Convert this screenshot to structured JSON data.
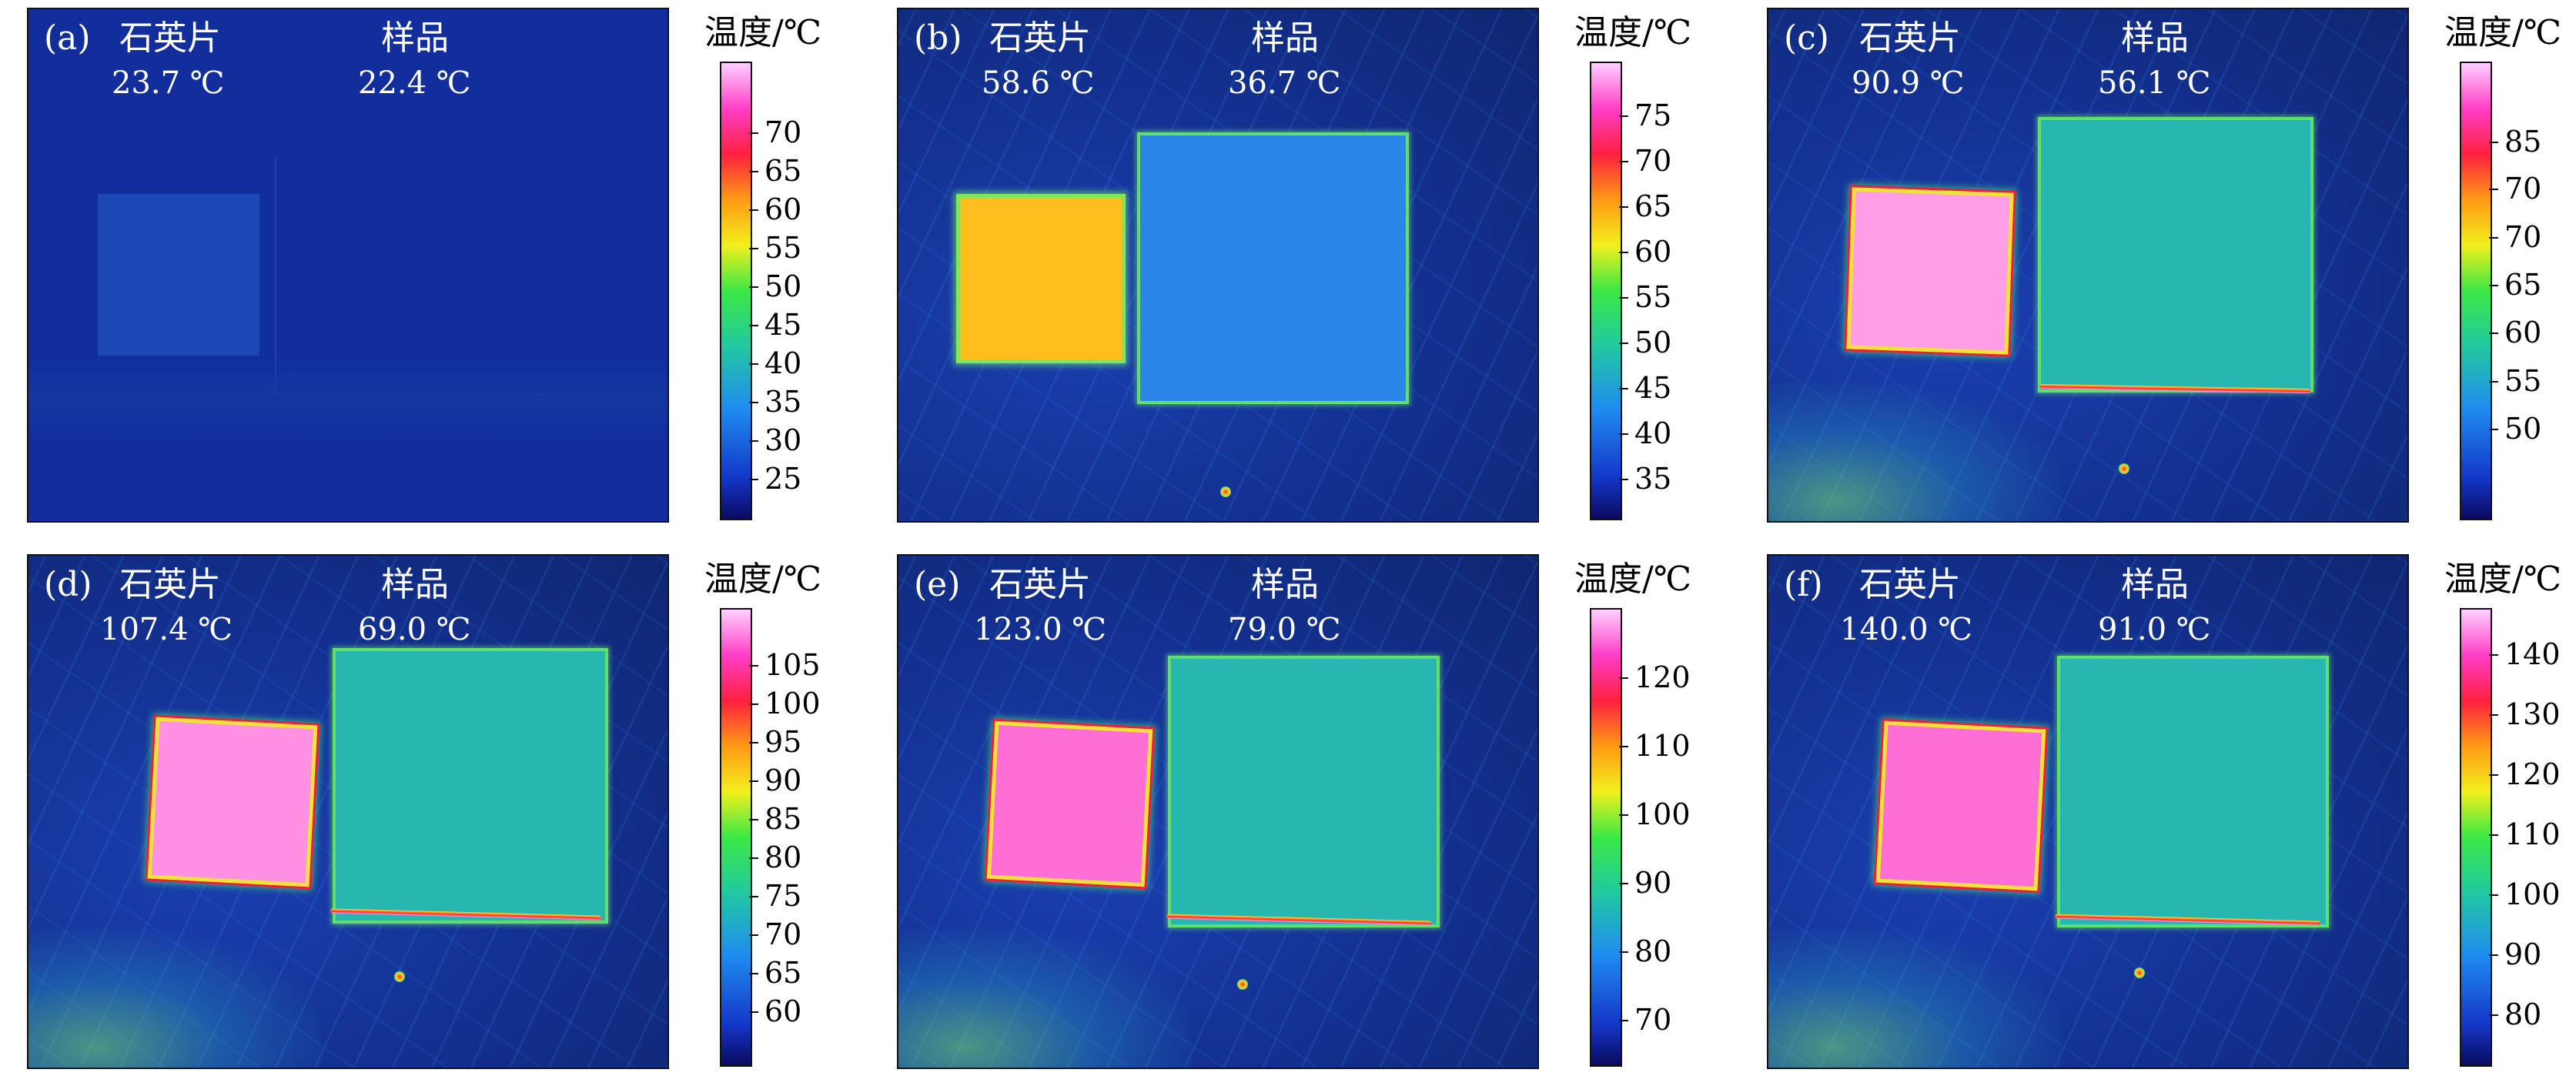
{
  "panels": [
    {
      "id": "a",
      "tag": "(a)",
      "quartz_label": "石英片",
      "sample_label": "样品",
      "quartz_temp": "23.7 ℃",
      "sample_temp": "22.4 ℃",
      "colorbar_title": "温度/℃",
      "ticks": [
        "70",
        "65",
        "60",
        "55",
        "50",
        "45",
        "40",
        "35",
        "30",
        "25"
      ]
    },
    {
      "id": "b",
      "tag": "(b)",
      "quartz_label": "石英片",
      "sample_label": "样品",
      "quartz_temp": "58.6 ℃",
      "sample_temp": "36.7 ℃",
      "colorbar_title": "温度/℃",
      "ticks": [
        "75",
        "70",
        "65",
        "60",
        "55",
        "50",
        "45",
        "40",
        "35"
      ]
    },
    {
      "id": "c",
      "tag": "(c)",
      "quartz_label": "石英片",
      "sample_label": "样品",
      "quartz_temp": "90.9 ℃",
      "sample_temp": "56.1 ℃",
      "colorbar_title": "温度/℃",
      "ticks": [
        "85",
        "70",
        "70",
        "65",
        "60",
        "55",
        "50"
      ]
    },
    {
      "id": "d",
      "tag": "(d)",
      "quartz_label": "石英片",
      "sample_label": "样品",
      "quartz_temp": "107.4 ℃",
      "sample_temp": "69.0 ℃",
      "colorbar_title": "温度/℃",
      "ticks": [
        "105",
        "100",
        "95",
        "90",
        "85",
        "80",
        "75",
        "70",
        "65",
        "60"
      ]
    },
    {
      "id": "e",
      "tag": "(e)",
      "quartz_label": "石英片",
      "sample_label": "样品",
      "quartz_temp": "123.0 ℃",
      "sample_temp": "79.0 ℃",
      "colorbar_title": "温度/℃",
      "ticks": [
        "120",
        "110",
        "100",
        "90",
        "80",
        "70"
      ]
    },
    {
      "id": "f",
      "tag": "(f)",
      "quartz_label": "石英片",
      "sample_label": "样品",
      "quartz_temp": "140.0 ℃",
      "sample_temp": "91.0 ℃",
      "colorbar_title": "温度/℃",
      "ticks": [
        "140",
        "130",
        "120",
        "110",
        "100",
        "90",
        "80"
      ]
    }
  ],
  "colors": {
    "background": "#112e9c",
    "quartz_hot": "#ff8ee6",
    "quartz_warm": "#ffb81a",
    "sample_teal": "#27b7b0",
    "sample_blue": "#2b86e8"
  }
}
